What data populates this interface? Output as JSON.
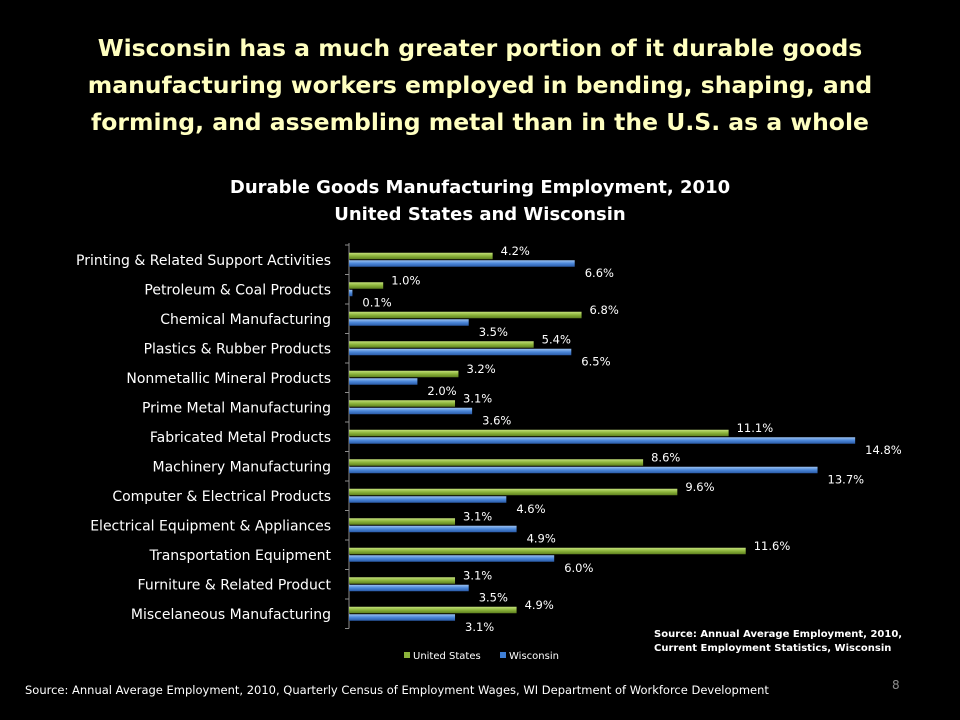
{
  "slide": {
    "title": "Wisconsin has a much greater portion of it durable goods manufacturing workers employed in bending, shaping, and forming, and assembling metal than in the U.S. as a whole",
    "source": "Source: Annual Average Employment, 2010,  Quarterly Census of Employment  Wages, WI  Department of Workforce Development",
    "page_number": "8"
  },
  "chart_data": {
    "type": "bar",
    "orientation": "horizontal",
    "title": "Durable Goods Manufacturing Employment, 2010",
    "subtitle": "United States and Wisconsin",
    "categories": [
      "Printing & Related Support Activities",
      "Petroleum & Coal Products",
      "Chemical Manufacturing",
      "Plastics & Rubber Products",
      "Nonmetallic Mineral Products",
      "Prime Metal Manufacturing",
      "Fabricated Metal Products",
      "Machinery Manufacturing",
      "Computer & Electrical Products",
      "Electrical Equipment & Appliances",
      "Transportation Equipment",
      "Furniture & Related Product",
      "Miscelaneous Manufacturing"
    ],
    "series": [
      {
        "name": "United States",
        "color": "#8bb33a",
        "values": [
          4.2,
          1.0,
          6.8,
          5.4,
          3.2,
          3.1,
          11.1,
          8.6,
          9.6,
          3.1,
          11.6,
          3.1,
          4.9
        ],
        "labels": [
          "4.2%",
          "1.0%",
          "6.8%",
          "5.4%",
          "3.2%",
          "3.1%",
          "11.1%",
          "8.6%",
          "9.6%",
          "3.1%",
          "11.6%",
          "3.1%",
          "4.9%"
        ]
      },
      {
        "name": "Wisconsin",
        "color": "#3f7fd6",
        "values": [
          6.6,
          0.1,
          3.5,
          6.5,
          2.0,
          3.6,
          14.8,
          13.7,
          4.6,
          4.9,
          6.0,
          3.5,
          3.1
        ],
        "labels": [
          "6.6%",
          "0.1%",
          "3.5%",
          "6.5%",
          "2.0%",
          "3.6%",
          "14.8%",
          "13.7%",
          "4.6%",
          "4.9%",
          "6.0%",
          "3.5%",
          "3.1%"
        ]
      }
    ],
    "xlim": [
      0,
      15
    ],
    "grid": false,
    "legend_position": "bottom",
    "annotation": [
      "Source: Annual Average Employment, 2010,",
      "Current Employment Statistics, Wisconsin"
    ]
  }
}
